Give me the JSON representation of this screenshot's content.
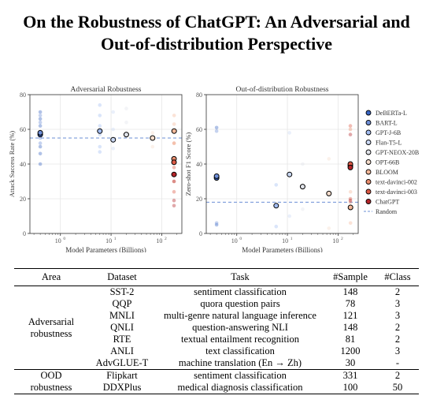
{
  "paper": {
    "title_line1": "On the Robustness of ChatGPT: An Adversarial and",
    "title_line2": "Out-of-distribution Perspective"
  },
  "legend": {
    "items": [
      {
        "label": "DeBERTa-L",
        "color": "#3a66c4"
      },
      {
        "label": "BART-L",
        "color": "#6f8fd8"
      },
      {
        "label": "GPT-J-6B",
        "color": "#a3bdf2"
      },
      {
        "label": "Flan-T5-L",
        "color": "#cbd9f5"
      },
      {
        "label": "GPT-NEOX-20B",
        "color": "#e1e4ea"
      },
      {
        "label": "OPT-66B",
        "color": "#f5dccb"
      },
      {
        "label": "BLOOM",
        "color": "#f4b99a"
      },
      {
        "label": "text-davinci-002",
        "color": "#ea8e6e"
      },
      {
        "label": "text-davinci-003",
        "color": "#dc5a45"
      },
      {
        "label": "ChatGPT",
        "color": "#b5262a"
      }
    ],
    "random_label": "Random"
  },
  "chart_data": [
    {
      "type": "scatter",
      "title": "Adversarial Robustness",
      "xlabel": "Model Parameters (Billions)",
      "ylabel": "Attack Success Rate (%)",
      "x_scale": "log",
      "xlim": [
        0.25,
        250
      ],
      "ylim": [
        0,
        80
      ],
      "xticks": [
        {
          "value": 1,
          "base": "10",
          "exp": "0"
        },
        {
          "value": 10,
          "base": "10",
          "exp": "1"
        },
        {
          "value": 100,
          "base": "10",
          "exp": "2"
        }
      ],
      "yticks": [
        0,
        20,
        40,
        60,
        80
      ],
      "random_baseline": 55,
      "grid": true,
      "average_points": [
        {
          "series": "DeBERTa-L",
          "x": 0.4,
          "y": 57
        },
        {
          "series": "BART-L",
          "x": 0.4,
          "y": 58
        },
        {
          "series": "GPT-J-6B",
          "x": 6,
          "y": 59
        },
        {
          "series": "Flan-T5-L",
          "x": 11,
          "y": 54
        },
        {
          "series": "GPT-NEOX-20B",
          "x": 20,
          "y": 57
        },
        {
          "series": "OPT-66B",
          "x": 66,
          "y": 55
        },
        {
          "series": "BLOOM",
          "x": 176,
          "y": 59
        },
        {
          "series": "text-davinci-002",
          "x": 175,
          "y": 43
        },
        {
          "series": "text-davinci-003",
          "x": 175,
          "y": 41
        },
        {
          "series": "ChatGPT",
          "x": 175,
          "y": 34
        }
      ],
      "task_points": [
        {
          "series": "DeBERTa-L",
          "x": 0.4,
          "y": 70
        },
        {
          "series": "DeBERTa-L",
          "x": 0.4,
          "y": 66
        },
        {
          "series": "DeBERTa-L",
          "x": 0.4,
          "y": 62
        },
        {
          "series": "DeBERTa-L",
          "x": 0.4,
          "y": 50
        },
        {
          "series": "DeBERTa-L",
          "x": 0.4,
          "y": 46
        },
        {
          "series": "DeBERTa-L",
          "x": 0.4,
          "y": 40
        },
        {
          "series": "BART-L",
          "x": 0.4,
          "y": 68
        },
        {
          "series": "BART-L",
          "x": 0.4,
          "y": 64
        },
        {
          "series": "BART-L",
          "x": 0.4,
          "y": 55
        },
        {
          "series": "BART-L",
          "x": 0.4,
          "y": 52
        },
        {
          "series": "GPT-J-6B",
          "x": 6,
          "y": 74
        },
        {
          "series": "GPT-J-6B",
          "x": 6,
          "y": 68
        },
        {
          "series": "GPT-J-6B",
          "x": 6,
          "y": 62
        },
        {
          "series": "GPT-J-6B",
          "x": 6,
          "y": 57
        },
        {
          "series": "GPT-J-6B",
          "x": 6,
          "y": 50
        },
        {
          "series": "GPT-J-6B",
          "x": 6,
          "y": 47
        },
        {
          "series": "Flan-T5-L",
          "x": 11,
          "y": 70
        },
        {
          "series": "Flan-T5-L",
          "x": 11,
          "y": 60
        },
        {
          "series": "Flan-T5-L",
          "x": 11,
          "y": 53
        },
        {
          "series": "Flan-T5-L",
          "x": 11,
          "y": 49
        },
        {
          "series": "GPT-NEOX-20B",
          "x": 20,
          "y": 72
        },
        {
          "series": "GPT-NEOX-20B",
          "x": 20,
          "y": 64
        },
        {
          "series": "OPT-66B",
          "x": 66,
          "y": 58
        },
        {
          "series": "OPT-66B",
          "x": 66,
          "y": 50
        },
        {
          "series": "BLOOM",
          "x": 176,
          "y": 68
        },
        {
          "series": "BLOOM",
          "x": 176,
          "y": 63
        },
        {
          "series": "BLOOM",
          "x": 176,
          "y": 52
        },
        {
          "series": "text-davinci-002",
          "x": 175,
          "y": 52
        },
        {
          "series": "text-davinci-002",
          "x": 175,
          "y": 30
        },
        {
          "series": "text-davinci-003",
          "x": 175,
          "y": 38
        },
        {
          "series": "text-davinci-003",
          "x": 175,
          "y": 24
        },
        {
          "series": "ChatGPT",
          "x": 175,
          "y": 30
        },
        {
          "series": "ChatGPT",
          "x": 175,
          "y": 19
        },
        {
          "series": "ChatGPT",
          "x": 175,
          "y": 16
        }
      ]
    },
    {
      "type": "scatter",
      "title": "Out-of-distribution Robustness",
      "xlabel": "Model Parameters (Billions)",
      "ylabel": "Zero-shot F1 Score (%)",
      "x_scale": "log",
      "xlim": [
        0.25,
        250
      ],
      "ylim": [
        0,
        80
      ],
      "xticks": [
        {
          "value": 1,
          "base": "10",
          "exp": "0"
        },
        {
          "value": 10,
          "base": "10",
          "exp": "1"
        },
        {
          "value": 100,
          "base": "10",
          "exp": "2"
        }
      ],
      "yticks": [
        0,
        20,
        40,
        60,
        80
      ],
      "random_baseline": 18,
      "grid": true,
      "average_points": [
        {
          "series": "DeBERTa-L",
          "x": 0.4,
          "y": 32
        },
        {
          "series": "BART-L",
          "x": 0.4,
          "y": 33
        },
        {
          "series": "GPT-J-6B",
          "x": 6,
          "y": 16
        },
        {
          "series": "Flan-T5-L",
          "x": 11,
          "y": 34
        },
        {
          "series": "GPT-NEOX-20B",
          "x": 20,
          "y": 27
        },
        {
          "series": "OPT-66B",
          "x": 66,
          "y": 23
        },
        {
          "series": "BLOOM",
          "x": 176,
          "y": 15
        },
        {
          "series": "text-davinci-002",
          "x": 175,
          "y": 39
        },
        {
          "series": "text-davinci-003",
          "x": 175,
          "y": 40
        },
        {
          "series": "ChatGPT",
          "x": 175,
          "y": 38
        }
      ],
      "task_points": [
        {
          "series": "DeBERTa-L",
          "x": 0.4,
          "y": 61
        },
        {
          "series": "DeBERTa-L",
          "x": 0.4,
          "y": 5
        },
        {
          "series": "BART-L",
          "x": 0.4,
          "y": 59
        },
        {
          "series": "BART-L",
          "x": 0.4,
          "y": 6
        },
        {
          "series": "GPT-J-6B",
          "x": 6,
          "y": 28
        },
        {
          "series": "GPT-J-6B",
          "x": 6,
          "y": 4
        },
        {
          "series": "Flan-T5-L",
          "x": 11,
          "y": 58
        },
        {
          "series": "Flan-T5-L",
          "x": 11,
          "y": 10
        },
        {
          "series": "GPT-NEOX-20B",
          "x": 20,
          "y": 40
        },
        {
          "series": "GPT-NEOX-20B",
          "x": 20,
          "y": 14
        },
        {
          "series": "OPT-66B",
          "x": 66,
          "y": 43
        },
        {
          "series": "OPT-66B",
          "x": 66,
          "y": 3
        },
        {
          "series": "BLOOM",
          "x": 176,
          "y": 24
        },
        {
          "series": "BLOOM",
          "x": 176,
          "y": 6
        },
        {
          "series": "text-davinci-002",
          "x": 175,
          "y": 60
        },
        {
          "series": "text-davinci-002",
          "x": 175,
          "y": 18
        },
        {
          "series": "text-davinci-003",
          "x": 175,
          "y": 62
        },
        {
          "series": "text-davinci-003",
          "x": 175,
          "y": 20
        },
        {
          "series": "ChatGPT",
          "x": 175,
          "y": 57
        },
        {
          "series": "ChatGPT",
          "x": 175,
          "y": 19
        }
      ]
    }
  ],
  "table": {
    "headers": [
      "Area",
      "Dataset",
      "Task",
      "#Sample",
      "#Class"
    ],
    "groups": [
      {
        "area_line1": "Adversarial",
        "area_line2": "robustness",
        "rows": [
          [
            "SST-2",
            "sentiment classification",
            "148",
            "2"
          ],
          [
            "QQP",
            "quora question pairs",
            "78",
            "3"
          ],
          [
            "MNLI",
            "multi-genre natural language inference",
            "121",
            "3"
          ],
          [
            "QNLI",
            "question-answering NLI",
            "148",
            "2"
          ],
          [
            "RTE",
            "textual entailment recognition",
            "81",
            "2"
          ],
          [
            "ANLI",
            "text classification",
            "1200",
            "3"
          ],
          [
            "AdvGLUE-T",
            "machine translation (En → Zh)",
            "30",
            "-"
          ]
        ]
      },
      {
        "area_line1": "OOD",
        "area_line2": "robustness",
        "rows": [
          [
            "Flipkart",
            "sentiment classification",
            "331",
            "2"
          ],
          [
            "DDXPlus",
            "medical diagnosis classification",
            "100",
            "50"
          ]
        ]
      }
    ]
  }
}
